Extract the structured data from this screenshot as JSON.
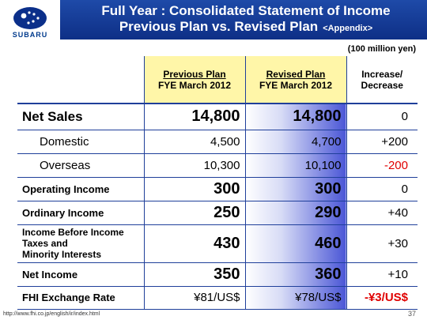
{
  "brand": {
    "logo_text": "SUBARU"
  },
  "header": {
    "title_line1": "Full Year : Consolidated Statement of Income",
    "title_line2": "Previous Plan vs. Revised Plan",
    "title_tag": "<Appendix>"
  },
  "unit": "(100 million yen)",
  "columns": {
    "prev_line1": "Previous Plan",
    "prev_line2": "FYE March 2012",
    "rev_line1": "Revised Plan",
    "rev_line2": "FYE March 2012",
    "inc_line1": "Increase/",
    "inc_line2": "Decrease"
  },
  "rows": [
    {
      "label": "Net Sales",
      "prev": "14,800",
      "rev": "14,800",
      "inc": "0"
    },
    {
      "label": "Domestic",
      "prev": "4,500",
      "rev": "4,700",
      "inc": "+200"
    },
    {
      "label": "Overseas",
      "prev": "10,300",
      "rev": "10,100",
      "inc": "-200"
    },
    {
      "label": "Operating Income",
      "prev": "300",
      "rev": "300",
      "inc": "0"
    },
    {
      "label": "Ordinary Income",
      "prev": "250",
      "rev": "290",
      "inc": "+40"
    },
    {
      "label_line1": "Income Before Income",
      "label_line2": "Taxes and",
      "label_line3": "Minority Interests",
      "prev": "430",
      "rev": "460",
      "inc": "+30"
    },
    {
      "label": "Net Income",
      "prev": "350",
      "rev": "360",
      "inc": "+10"
    },
    {
      "label": "FHI Exchange Rate",
      "prev": "¥81/US$",
      "rev": "¥78/US$",
      "inc": "-¥3/US$"
    }
  ],
  "footer": {
    "url": "http://www.fhi.co.jp/english/ir/index.html",
    "page": "37"
  },
  "colors": {
    "title_bar": "#0e2f86",
    "header_highlight": "#fff6a8",
    "revised_gradient_end": "#4a56d6",
    "negative": "#e00000"
  }
}
